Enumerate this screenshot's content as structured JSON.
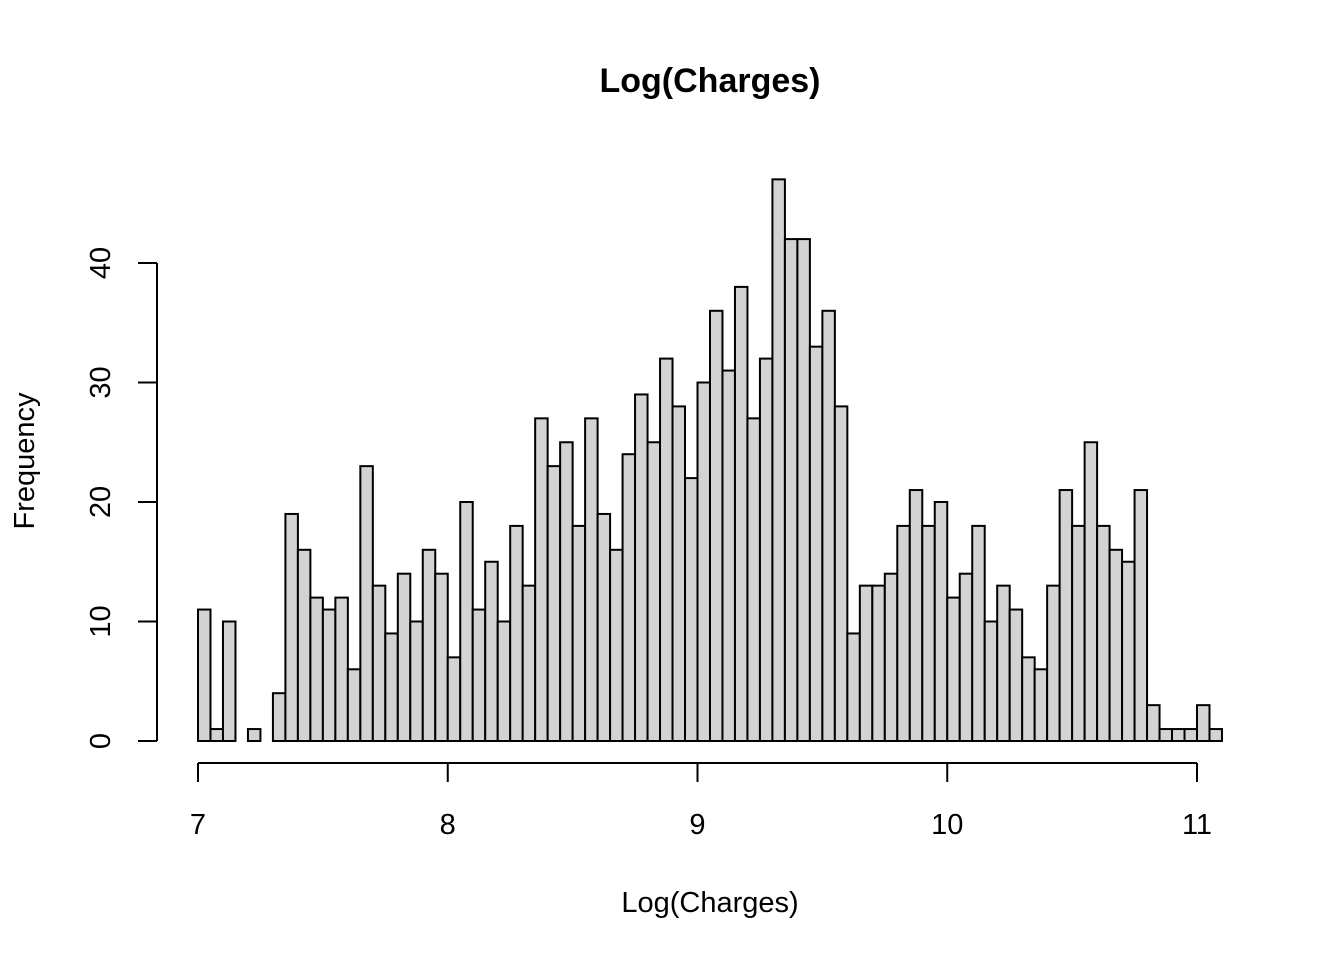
{
  "chart_data": {
    "type": "bar",
    "title": "Log(Charges)",
    "xlabel": "Log(Charges)",
    "ylabel": "Frequency",
    "bin_width": 0.05,
    "bin_start": 7.0,
    "xlim": [
      7,
      11
    ],
    "ylim": [
      0,
      40
    ],
    "x_ticks": [
      7,
      8,
      9,
      10,
      11
    ],
    "y_ticks": [
      0,
      10,
      20,
      30,
      40
    ],
    "bar_color": "#d3d3d3",
    "grid": false,
    "values": [
      11,
      1,
      10,
      0,
      1,
      0,
      4,
      19,
      16,
      12,
      11,
      12,
      6,
      23,
      13,
      9,
      14,
      10,
      16,
      14,
      7,
      20,
      11,
      15,
      10,
      18,
      13,
      27,
      23,
      25,
      18,
      27,
      19,
      16,
      24,
      29,
      25,
      32,
      28,
      22,
      30,
      36,
      31,
      38,
      27,
      32,
      47,
      42,
      42,
      33,
      36,
      28,
      9,
      13,
      13,
      14,
      18,
      21,
      18,
      20,
      12,
      14,
      18,
      10,
      13,
      11,
      7,
      6,
      13,
      21,
      18,
      25,
      18,
      16,
      15,
      21,
      3,
      1,
      1,
      1,
      3,
      1
    ]
  }
}
